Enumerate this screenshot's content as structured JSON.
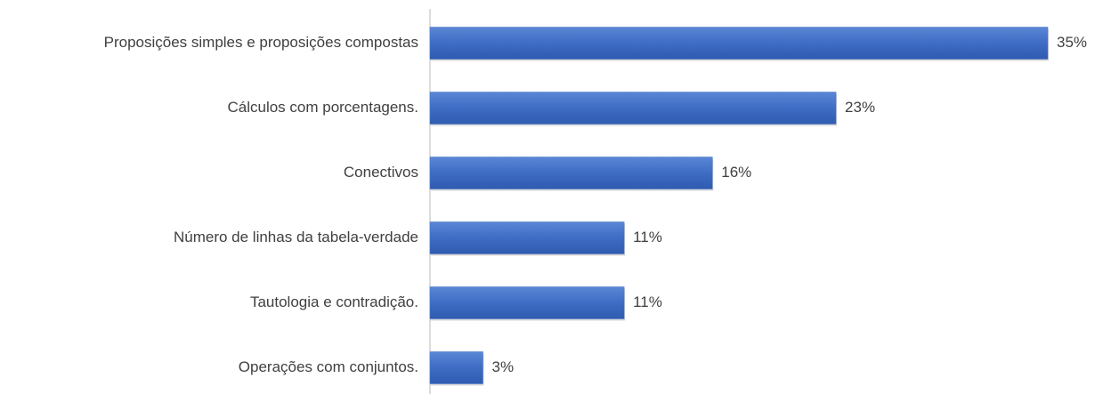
{
  "chart_data": {
    "type": "barh",
    "categories": [
      "Proposições simples e proposições compostas",
      "Cálculos com porcentagens.",
      "Conectivos",
      "Número de linhas da tabela-verdade",
      "Tautologia e contradição.",
      "Operações com conjuntos."
    ],
    "values": [
      35,
      23,
      16,
      11,
      11,
      3
    ],
    "value_labels": [
      "35%",
      "23%",
      "16%",
      "11%",
      "11%",
      "3%"
    ],
    "color": "#4472c4"
  }
}
